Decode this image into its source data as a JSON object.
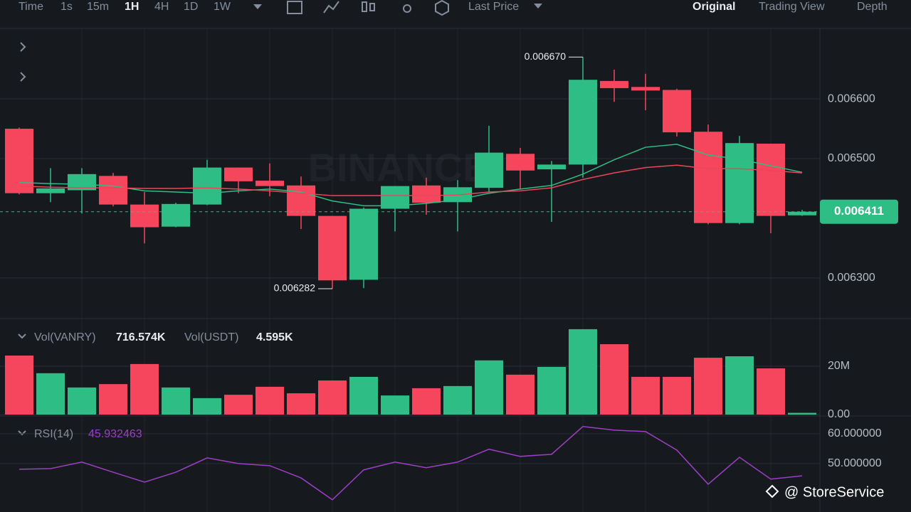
{
  "toolbar": {
    "intervals": [
      "Time",
      "1s",
      "15m",
      "1H",
      "4H",
      "1D",
      "1W"
    ],
    "price_type": "Last Price",
    "views": [
      "Original",
      "Trading View",
      "Depth"
    ]
  },
  "watermark": "BINANCE",
  "credit": "@ StoreService",
  "chart_data": [
    {
      "type": "candlestick",
      "open": [
        0.00655,
        0.006442,
        0.006447,
        0.006471,
        0.006423,
        0.006386,
        0.006423,
        0.006485,
        0.006463,
        0.006455,
        0.006404,
        0.006297,
        0.006416,
        0.006455,
        0.006427,
        0.006451,
        0.006508,
        0.006482,
        0.00649,
        0.00663,
        0.00662,
        0.006615,
        0.006545,
        0.006392,
        0.006525,
        0.006405
      ],
      "high": [
        0.006552,
        0.006484,
        0.006484,
        0.006476,
        0.006444,
        0.006426,
        0.006498,
        0.006485,
        0.006492,
        0.00647,
        0.006404,
        0.006418,
        0.006454,
        0.006468,
        0.006464,
        0.006555,
        0.006518,
        0.006496,
        0.00667,
        0.006649,
        0.006642,
        0.006617,
        0.006557,
        0.006538,
        0.006525,
        0.006414
      ],
      "low": [
        0.00644,
        0.006427,
        0.006408,
        0.00642,
        0.006358,
        0.006385,
        0.006422,
        0.006442,
        0.006437,
        0.006382,
        0.006282,
        0.006283,
        0.006378,
        0.006406,
        0.006378,
        0.006444,
        0.006449,
        0.006394,
        0.006468,
        0.006595,
        0.006581,
        0.006537,
        0.00639,
        0.00639,
        0.006375,
        0.006404
      ],
      "close": [
        0.006442,
        0.00645,
        0.006474,
        0.006423,
        0.006385,
        0.006424,
        0.006485,
        0.006462,
        0.006454,
        0.006404,
        0.006296,
        0.006416,
        0.006454,
        0.006426,
        0.006452,
        0.00651,
        0.00648,
        0.00649,
        0.006632,
        0.006618,
        0.006614,
        0.006544,
        0.006392,
        0.006526,
        0.006404,
        0.006411
      ],
      "up_color": "#2ebd85",
      "down_color": "#f6465d",
      "series": [
        {
          "color": "#2ebd85",
          "values": [
            0.00646,
            0.006458,
            0.006457,
            0.006454,
            0.006446,
            0.006444,
            0.006442,
            0.006446,
            0.006449,
            0.006444,
            0.006429,
            0.006421,
            0.006421,
            0.006425,
            0.006431,
            0.006442,
            0.006449,
            0.006455,
            0.006474,
            0.006498,
            0.006519,
            0.006524,
            0.006506,
            0.006499,
            0.006488,
            0.006477
          ]
        },
        {
          "color": "#e8475a",
          "values": [
            0.006454,
            0.006452,
            0.006451,
            0.006451,
            0.00645,
            0.00645,
            0.006451,
            0.006449,
            0.006446,
            0.006442,
            0.006438,
            0.006438,
            0.006438,
            0.006438,
            0.006439,
            0.006444,
            0.006446,
            0.006451,
            0.006465,
            0.006476,
            0.006485,
            0.006489,
            0.006483,
            0.006483,
            0.00648,
            0.006476
          ]
        }
      ],
      "high_label": "0.006670",
      "low_label": "0.006282",
      "last_price": 0.006411,
      "ylim": [
        0.006232,
        0.006718
      ],
      "yticks": [
        {
          "value": 0.0063,
          "label": "0.006300"
        },
        {
          "value": 0.0065,
          "label": "0.006500"
        },
        {
          "value": 0.0066,
          "label": "0.006600"
        }
      ]
    },
    {
      "type": "bar",
      "legend": [
        {
          "label": "Vol(VANRY)",
          "value": "716.574K"
        },
        {
          "label": "Vol(USDT)",
          "value": "4.595K"
        }
      ],
      "values": [
        24400000,
        17100000,
        11200000,
        12600000,
        20900000,
        11200000,
        6800000,
        8200000,
        11500000,
        8800000,
        14100000,
        15600000,
        7900000,
        10900000,
        11800000,
        22400000,
        16500000,
        19700000,
        35300000,
        29100000,
        15600000,
        15600000,
        23500000,
        24100000,
        19100000,
        716574
      ],
      "ylim": [
        0,
        39100000
      ],
      "yticks": [
        {
          "value": 0,
          "label": "0.00"
        },
        {
          "value": 20000000,
          "label": "20M"
        }
      ]
    },
    {
      "type": "line",
      "label": "RSI(14)",
      "value_text": "45.932463",
      "color": "#9c3fc4",
      "values": [
        48.1,
        48.3,
        50.5,
        47.1,
        43.8,
        47.1,
        51.9,
        50,
        49.3,
        45.2,
        37.9,
        47.9,
        50.5,
        48.6,
        50.5,
        54.8,
        52.4,
        53.1,
        62.4,
        61.2,
        60.7,
        54.5,
        43.1,
        52.1,
        44.8,
        45.9
      ],
      "ylim": [
        33.8,
        65.2
      ],
      "yticks": [
        {
          "value": 50,
          "label": "50.000000"
        },
        {
          "value": 60,
          "label": "60.000000"
        }
      ]
    }
  ]
}
